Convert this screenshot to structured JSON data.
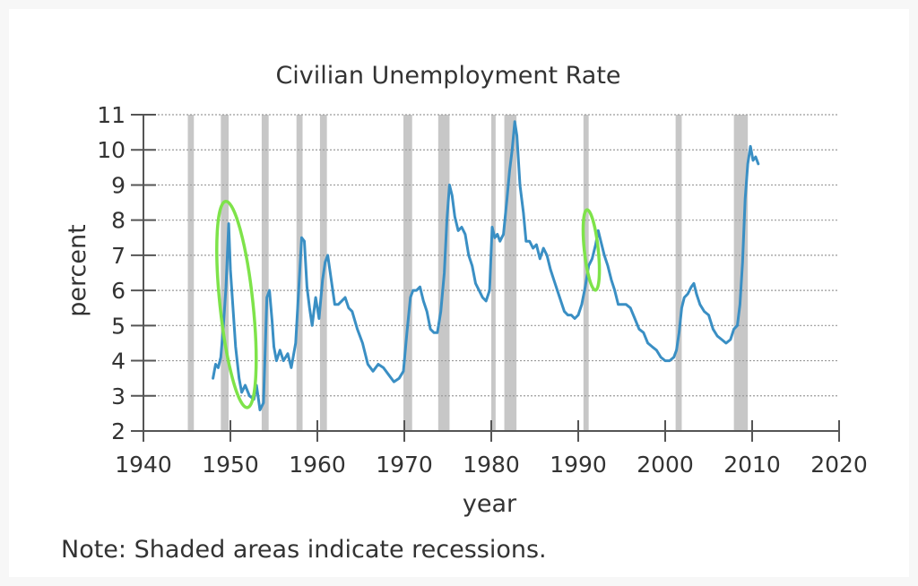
{
  "chart_data": {
    "type": "line",
    "title": "Civilian Unemployment Rate",
    "xlabel": "year",
    "ylabel": "percent",
    "xlim": [
      1940,
      2020
    ],
    "ylim": [
      2,
      11
    ],
    "x_ticks": [
      1940,
      1950,
      1960,
      1970,
      1980,
      1990,
      2000,
      2010,
      2020
    ],
    "x_tick_labels": [
      "1940",
      "1950",
      "1960",
      "1970",
      "1980",
      "1990",
      "2000",
      "2010",
      "2020"
    ],
    "y_ticks": [
      2,
      3,
      4,
      5,
      6,
      7,
      8,
      9,
      10,
      11
    ],
    "y_tick_labels": [
      "2",
      "3",
      "4",
      "5",
      "6",
      "7",
      "8",
      "9",
      "10",
      "11"
    ],
    "grid": true,
    "note": "Note: Shaded areas indicate recessions.",
    "colors": {
      "line": "#3a8fc4",
      "recession": "#c7c7c7",
      "highlight": "#7ee34a",
      "grid": "#9a9a9a"
    },
    "recessions": [
      [
        1945.1,
        1945.8
      ],
      [
        1948.9,
        1949.8
      ],
      [
        1953.6,
        1954.4
      ],
      [
        1957.6,
        1958.3
      ],
      [
        1960.3,
        1961.1
      ],
      [
        1969.9,
        1970.9
      ],
      [
        1973.9,
        1975.2
      ],
      [
        1980.0,
        1980.5
      ],
      [
        1981.5,
        1982.9
      ],
      [
        1990.6,
        1991.2
      ],
      [
        2001.2,
        2001.9
      ],
      [
        2007.9,
        2009.5
      ]
    ],
    "highlights": [
      {
        "name": "highlight-1949",
        "cx": 1950.7,
        "cy": 5.6,
        "rx": 1.9,
        "ry": 2.95
      },
      {
        "name": "highlight-1992",
        "cx": 1991.5,
        "cy": 7.15,
        "rx": 0.8,
        "ry": 1.15
      }
    ],
    "series": [
      {
        "name": "Civilian Unemployment Rate",
        "x": [
          1948.0,
          1948.3,
          1948.6,
          1948.9,
          1949.2,
          1949.5,
          1949.8,
          1950.0,
          1950.3,
          1950.6,
          1951.0,
          1951.3,
          1951.7,
          1952.2,
          1952.7,
          1953.0,
          1953.4,
          1953.8,
          1954.2,
          1954.5,
          1954.8,
          1955.0,
          1955.3,
          1955.7,
          1956.1,
          1956.6,
          1957.0,
          1957.5,
          1957.9,
          1958.2,
          1958.5,
          1958.8,
          1959.1,
          1959.4,
          1959.8,
          1960.2,
          1960.6,
          1960.9,
          1961.2,
          1961.6,
          1962.0,
          1962.4,
          1962.8,
          1963.2,
          1963.6,
          1964.0,
          1964.6,
          1965.2,
          1965.8,
          1966.4,
          1967.0,
          1967.6,
          1968.2,
          1968.8,
          1969.4,
          1969.9,
          1970.3,
          1970.7,
          1971.0,
          1971.4,
          1971.8,
          1972.2,
          1972.6,
          1973.0,
          1973.4,
          1973.8,
          1974.2,
          1974.6,
          1974.9,
          1975.2,
          1975.5,
          1975.8,
          1976.2,
          1976.6,
          1977.0,
          1977.4,
          1977.8,
          1978.2,
          1978.6,
          1979.0,
          1979.4,
          1979.8,
          1980.1,
          1980.4,
          1980.7,
          1981.0,
          1981.4,
          1981.8,
          1982.1,
          1982.4,
          1982.7,
          1982.95,
          1983.3,
          1983.7,
          1984.0,
          1984.4,
          1984.8,
          1985.2,
          1985.6,
          1986.0,
          1986.4,
          1986.8,
          1987.2,
          1987.6,
          1988.0,
          1988.4,
          1988.8,
          1989.2,
          1989.6,
          1990.0,
          1990.4,
          1990.8,
          1991.2,
          1991.6,
          1992.0,
          1992.3,
          1992.6,
          1993.0,
          1993.4,
          1993.8,
          1994.2,
          1994.6,
          1995.0,
          1995.5,
          1996.0,
          1996.5,
          1997.0,
          1997.5,
          1998.0,
          1998.5,
          1999.0,
          1999.5,
          2000.0,
          2000.5,
          2001.0,
          2001.3,
          2001.6,
          2001.9,
          2002.2,
          2002.6,
          2003.0,
          2003.3,
          2003.6,
          2004.0,
          2004.5,
          2005.0,
          2005.5,
          2006.0,
          2006.5,
          2007.0,
          2007.5,
          2007.9,
          2008.3,
          2008.6,
          2008.9,
          2009.2,
          2009.5,
          2009.8,
          2010.1,
          2010.4,
          2010.7
        ],
        "values": [
          3.5,
          3.9,
          3.8,
          4.1,
          5.0,
          6.1,
          7.9,
          6.6,
          5.5,
          4.4,
          3.5,
          3.1,
          3.3,
          3.0,
          2.9,
          3.3,
          2.6,
          2.8,
          5.8,
          6.0,
          5.1,
          4.4,
          4.0,
          4.3,
          4.0,
          4.2,
          3.8,
          4.5,
          6.2,
          7.5,
          7.4,
          6.1,
          5.5,
          5.0,
          5.8,
          5.2,
          6.3,
          6.8,
          7.0,
          6.3,
          5.6,
          5.6,
          5.7,
          5.8,
          5.5,
          5.4,
          4.9,
          4.5,
          3.9,
          3.7,
          3.9,
          3.8,
          3.6,
          3.4,
          3.5,
          3.7,
          4.8,
          5.8,
          6.0,
          6.0,
          6.1,
          5.7,
          5.4,
          4.9,
          4.8,
          4.8,
          5.4,
          6.5,
          8.0,
          9.0,
          8.7,
          8.1,
          7.7,
          7.8,
          7.6,
          7.0,
          6.7,
          6.2,
          6.0,
          5.8,
          5.7,
          6.0,
          7.8,
          7.5,
          7.6,
          7.4,
          7.6,
          8.6,
          9.4,
          10.0,
          10.8,
          10.4,
          9.0,
          8.2,
          7.4,
          7.4,
          7.2,
          7.3,
          6.9,
          7.2,
          7.0,
          6.6,
          6.3,
          6.0,
          5.7,
          5.4,
          5.3,
          5.3,
          5.2,
          5.3,
          5.6,
          6.1,
          6.7,
          6.9,
          7.3,
          7.7,
          7.4,
          7.0,
          6.7,
          6.3,
          6.0,
          5.6,
          5.6,
          5.6,
          5.5,
          5.2,
          4.9,
          4.8,
          4.5,
          4.4,
          4.3,
          4.1,
          4.0,
          4.0,
          4.1,
          4.3,
          4.8,
          5.5,
          5.8,
          5.9,
          6.1,
          6.2,
          5.9,
          5.6,
          5.4,
          5.3,
          4.9,
          4.7,
          4.6,
          4.5,
          4.6,
          4.9,
          5.0,
          5.6,
          6.8,
          8.6,
          9.6,
          10.1,
          9.7,
          9.8,
          9.6
        ]
      }
    ]
  }
}
